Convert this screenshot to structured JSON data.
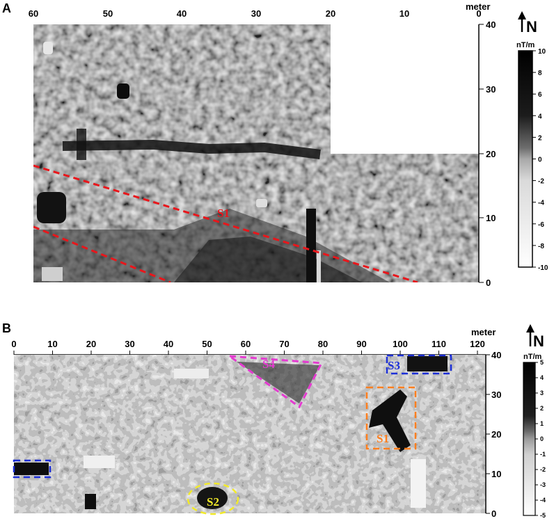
{
  "panel_a": {
    "letter": "A",
    "unit_label": "meter",
    "x_ticks": [
      "60",
      "50",
      "40",
      "30",
      "20",
      "10",
      "0"
    ],
    "y_ticks": [
      "40",
      "30",
      "20",
      "10",
      "0"
    ],
    "north_label": "N",
    "colorbar_unit": "nT/m",
    "colorbar_ticks": [
      "10",
      "8",
      "6",
      "4",
      "2",
      "0",
      "-2",
      "-4",
      "-6",
      "-8",
      "-10"
    ],
    "annotations": [
      {
        "text": "S1",
        "color": "#e8161b"
      }
    ],
    "line_color": "#e8161b"
  },
  "panel_b": {
    "letter": "B",
    "unit_label": "meter",
    "x_ticks": [
      "0",
      "10",
      "20",
      "30",
      "40",
      "50",
      "60",
      "70",
      "80",
      "90",
      "100",
      "110",
      "120"
    ],
    "y_ticks": [
      "40",
      "30",
      "20",
      "10",
      "0"
    ],
    "north_label": "N",
    "colorbar_unit": "nT/m",
    "colorbar_ticks": [
      "5",
      "4",
      "3",
      "2",
      "1",
      "0",
      "-1",
      "-2",
      "-3",
      "-4",
      "-5"
    ],
    "annotations": [
      {
        "text": "S4",
        "color": "#e43bd0"
      },
      {
        "text": "S3",
        "color": "#1c2fd8"
      },
      {
        "text": "S1",
        "color": "#ff7f1e"
      },
      {
        "text": "S2",
        "color": "#f2ea2a"
      }
    ]
  }
}
